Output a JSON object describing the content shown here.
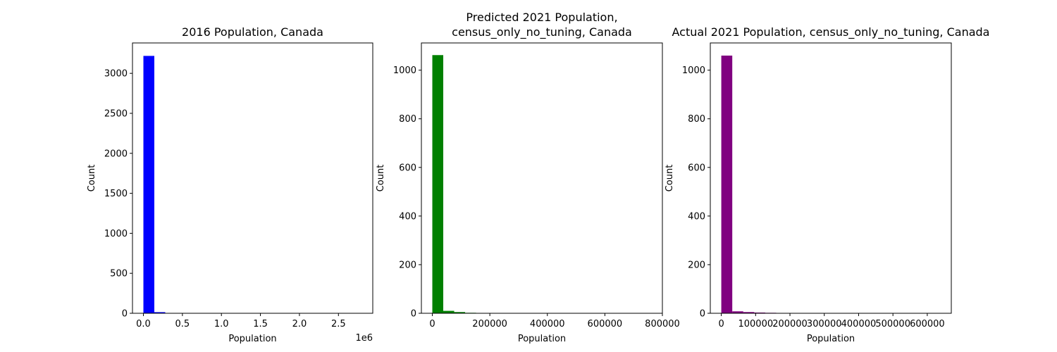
{
  "chart_data": [
    {
      "type": "bar",
      "title_lines": [
        "2016 Population, Canada"
      ],
      "xlabel": "Population",
      "ylabel": "Count",
      "offset_label": "1e6",
      "color": "#0000ff",
      "xlim": [
        -140000,
        2940000
      ],
      "ylim": [
        0,
        3380
      ],
      "xticks": [
        0,
        500000,
        1000000,
        1500000,
        2000000,
        2500000
      ],
      "xtick_labels": [
        "0.0",
        "0.5",
        "1.0",
        "1.5",
        "2.0",
        "2.5"
      ],
      "yticks": [
        0,
        500,
        1000,
        1500,
        2000,
        2500,
        3000
      ],
      "ytick_labels": [
        "0",
        "500",
        "1000",
        "1500",
        "2000",
        "2500",
        "3000"
      ],
      "bin_start": 0,
      "bin_width": 140000,
      "counts": [
        3218,
        14,
        2,
        1,
        1,
        0,
        0,
        0,
        0,
        0,
        0,
        0,
        0,
        0,
        0,
        0,
        0,
        0,
        0,
        1
      ]
    },
    {
      "type": "bar",
      "title_lines": [
        "Predicted 2021 Population,",
        "census_only_no_tuning, Canada"
      ],
      "xlabel": "Population",
      "ylabel": "Count",
      "offset_label": "",
      "color": "#008000",
      "xlim": [
        -38000,
        800000
      ],
      "ylim": [
        0,
        1112
      ],
      "xticks": [
        0,
        200000,
        400000,
        600000,
        800000
      ],
      "xtick_labels": [
        "0",
        "200000",
        "400000",
        "600000",
        "800000"
      ],
      "yticks": [
        0,
        200,
        400,
        600,
        800,
        1000
      ],
      "ytick_labels": [
        "0",
        "200",
        "400",
        "600",
        "800",
        "1000"
      ],
      "bin_start": 0,
      "bin_width": 38000,
      "counts": [
        1062,
        10,
        5,
        2,
        1,
        0,
        0,
        0,
        0,
        0,
        0,
        0,
        0,
        0,
        0,
        0,
        0,
        0,
        0,
        1
      ]
    },
    {
      "type": "bar",
      "title_lines": [
        "Actual 2021 Population, census_only_no_tuning, Canada"
      ],
      "xlabel": "Population",
      "ylabel": "Count",
      "offset_label": "",
      "color": "#800080",
      "xlim": [
        -32000,
        670000
      ],
      "ylim": [
        0,
        1112
      ],
      "xticks": [
        0,
        100000,
        200000,
        300000,
        400000,
        500000,
        600000
      ],
      "xtick_labels": [
        "0",
        "100000",
        "200000",
        "300000",
        "400000",
        "500000",
        "600000"
      ],
      "yticks": [
        0,
        200,
        400,
        600,
        800,
        1000
      ],
      "ytick_labels": [
        "0",
        "200",
        "400",
        "600",
        "800",
        "1000"
      ],
      "bin_start": 0,
      "bin_width": 32000,
      "counts": [
        1060,
        8,
        5,
        3,
        2,
        1,
        0,
        0,
        0,
        0,
        0,
        0,
        0,
        0,
        0,
        0,
        0,
        0,
        0,
        1
      ]
    }
  ]
}
